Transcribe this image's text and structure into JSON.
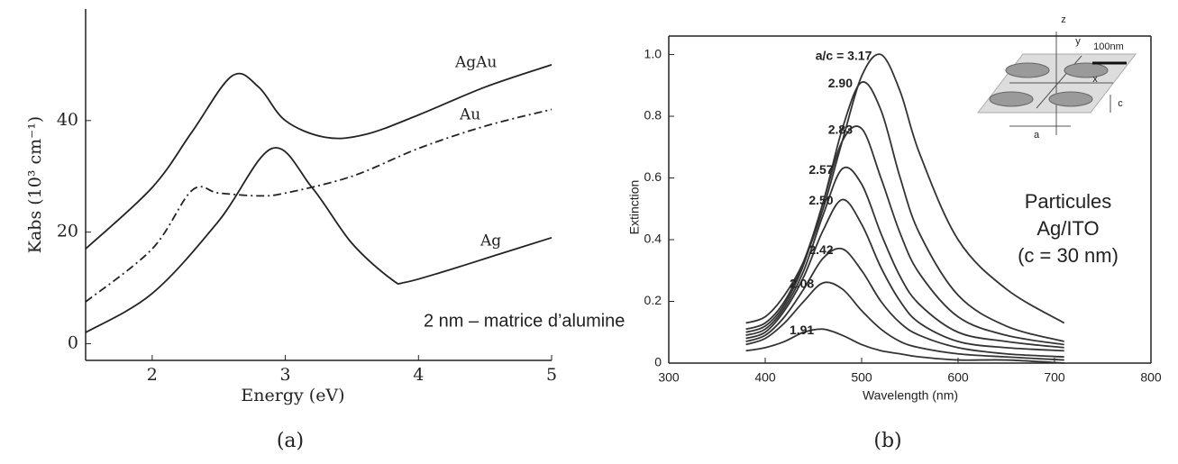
{
  "chart_data": [
    {
      "type": "line",
      "caption": "(a)",
      "x_label": "Energy (eV)",
      "y_label": "Kabs (10³ cm⁻¹)",
      "annotation": "2 nm – matrice d’alumine",
      "xlim": [
        1.5,
        5
      ],
      "xticks": [
        2,
        3,
        4,
        5
      ],
      "ylim": [
        -3,
        60
      ],
      "yticks": [
        0,
        20,
        40
      ],
      "grid": false,
      "frame": "axes",
      "series": [
        {
          "name": "AgAu",
          "color": "#222222",
          "linestyle": "solid",
          "x": [
            1.5,
            2,
            2.3,
            2.6,
            2.8,
            3.0,
            3.3,
            3.6,
            4,
            4.5,
            5
          ],
          "values": [
            17,
            28,
            38,
            48,
            46,
            40,
            37,
            37.5,
            41,
            46,
            50
          ]
        },
        {
          "name": "Au",
          "color": "#222222",
          "linestyle": "dashdot",
          "x": [
            1.5,
            2,
            2.3,
            2.5,
            2.8,
            3.0,
            3.5,
            4,
            4.5,
            5
          ],
          "values": [
            7.5,
            17,
            27.5,
            27,
            26.5,
            27,
            30,
            35,
            39,
            42
          ]
        },
        {
          "name": "Ag",
          "color": "#222222",
          "linestyle": "solid",
          "x": [
            1.5,
            2,
            2.5,
            2.9,
            3.2,
            3.5,
            3.8,
            3.9,
            4.2,
            4.6,
            5
          ],
          "values": [
            2,
            9,
            22,
            35,
            28,
            18,
            11.5,
            11,
            13,
            16,
            19
          ]
        }
      ]
    },
    {
      "type": "line",
      "caption": "(b)",
      "x_label": "Wavelength (nm)",
      "y_label": "Extinction",
      "annotation": [
        "Particules",
        "Ag/ITO",
        "(c = 30 nm)"
      ],
      "inset_labels": [
        "z",
        "y",
        "x",
        "c",
        "a",
        "100nm"
      ],
      "xlim": [
        300,
        800
      ],
      "xticks": [
        300,
        400,
        500,
        600,
        700,
        800
      ],
      "ylim": [
        0,
        1.06
      ],
      "yticks": [
        0,
        0.2,
        0.4,
        0.6,
        0.8,
        {
          "value": 1,
          "label": "1.0"
        }
      ],
      "grid": false,
      "frame": "box",
      "x": [
        380,
        400,
        420,
        440,
        460,
        480,
        500,
        520,
        540,
        560,
        600,
        650,
        710
      ],
      "series": [
        {
          "name": "a/c = 3.17",
          "color": "#333333",
          "values": [
            0.13,
            0.15,
            0.22,
            0.33,
            0.5,
            0.72,
            0.93,
            1.0,
            0.88,
            0.68,
            0.4,
            0.24,
            0.13
          ]
        },
        {
          "name": "2.90",
          "color": "#333333",
          "values": [
            0.11,
            0.13,
            0.2,
            0.33,
            0.52,
            0.76,
            0.91,
            0.82,
            0.6,
            0.42,
            0.22,
            0.12,
            0.07
          ]
        },
        {
          "name": "2.83",
          "color": "#333333",
          "values": [
            0.1,
            0.12,
            0.19,
            0.32,
            0.52,
            0.72,
            0.76,
            0.6,
            0.42,
            0.29,
            0.15,
            0.09,
            0.06
          ]
        },
        {
          "name": "2.57",
          "color": "#333333",
          "values": [
            0.09,
            0.11,
            0.18,
            0.3,
            0.48,
            0.63,
            0.58,
            0.42,
            0.28,
            0.19,
            0.1,
            0.07,
            0.05
          ]
        },
        {
          "name": "2.50",
          "color": "#333333",
          "values": [
            0.08,
            0.1,
            0.17,
            0.28,
            0.43,
            0.53,
            0.45,
            0.31,
            0.2,
            0.13,
            0.07,
            0.05,
            0.04
          ]
        },
        {
          "name": "2.42",
          "color": "#333333",
          "values": [
            0.07,
            0.09,
            0.15,
            0.24,
            0.34,
            0.37,
            0.3,
            0.2,
            0.13,
            0.09,
            0.05,
            0.03,
            0.02
          ]
        },
        {
          "name": "2.08",
          "color": "#333333",
          "values": [
            0.06,
            0.08,
            0.13,
            0.2,
            0.26,
            0.24,
            0.17,
            0.11,
            0.07,
            0.05,
            0.03,
            0.02,
            0.01
          ]
        },
        {
          "name": "1.91",
          "color": "#333333",
          "values": [
            0.04,
            0.05,
            0.07,
            0.1,
            0.11,
            0.09,
            0.06,
            0.04,
            0.03,
            0.02,
            0.01,
            0.01,
            0.0
          ]
        }
      ]
    }
  ]
}
